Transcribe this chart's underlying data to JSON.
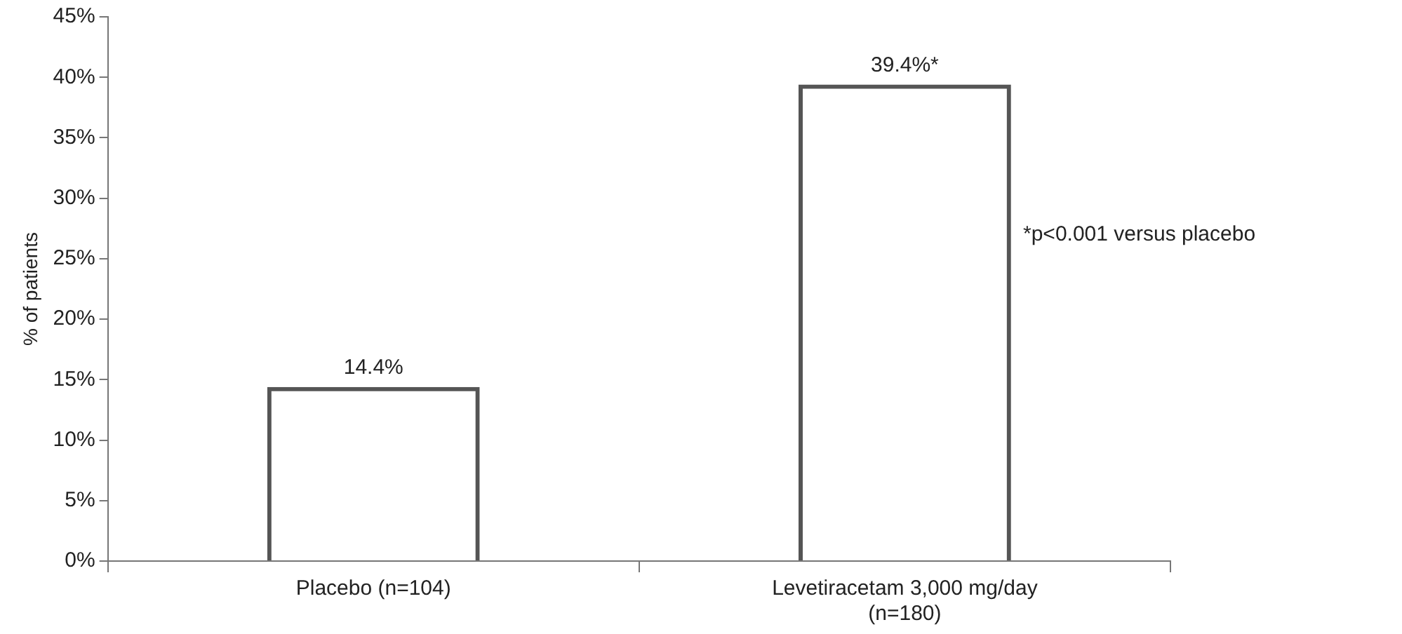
{
  "chart_data": {
    "type": "bar",
    "ylabel": "% of patients",
    "categories": [
      "Placebo (n=104)",
      "Levetiracetam 3,000 mg/day (n=180)"
    ],
    "values": [
      14.4,
      39.4
    ],
    "value_labels": [
      "14.4%",
      "39.4%*"
    ],
    "color": "#555555",
    "ylim": [
      0,
      45
    ],
    "yticks": [
      {
        "value": 0,
        "label": "0%"
      },
      {
        "value": 5,
        "label": "5%"
      },
      {
        "value": 10,
        "label": "10%"
      },
      {
        "value": 15,
        "label": "15%"
      },
      {
        "value": 20,
        "label": "20%"
      },
      {
        "value": 25,
        "label": "25%"
      },
      {
        "value": 30,
        "label": "30%"
      },
      {
        "value": 35,
        "label": "35%"
      },
      {
        "value": 40,
        "label": "40%"
      },
      {
        "value": 45,
        "label": "45%"
      }
    ],
    "annotations": [
      "*p<0.001 versus placebo"
    ],
    "grid": false,
    "legend": false
  }
}
